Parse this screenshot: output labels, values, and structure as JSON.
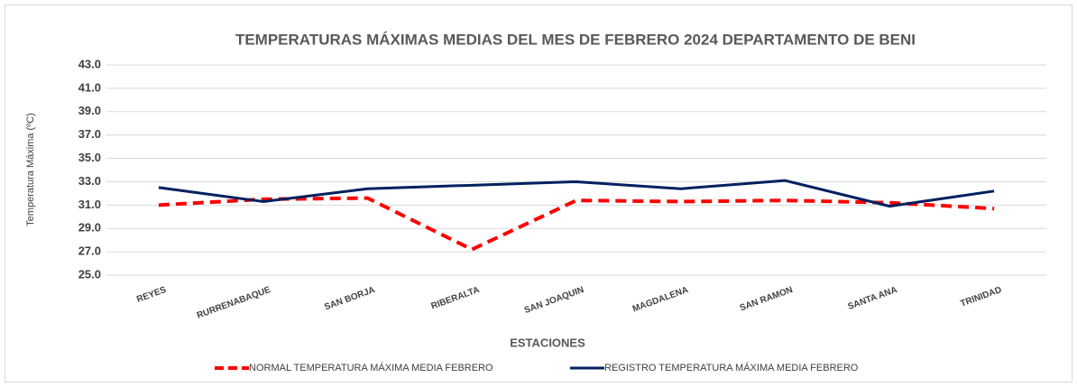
{
  "chart_data": {
    "type": "line",
    "title": "TEMPERATURAS MÁXIMAS MEDIAS DEL MES DE FEBRERO 2024 DEPARTAMENTO DE BENI",
    "x_label": "ESTACIONES",
    "y_label": "Temperatura Máxima (ºC)",
    "categories": [
      "REYES",
      "RURRENABAQUE",
      "SAN BORJA",
      "RIBERALTA",
      "SAN JOAQUIN",
      "MAGDALENA",
      "SAN RAMON",
      "SANTA ANA",
      "TRINIDAD"
    ],
    "series": [
      {
        "name": "NORMAL TEMPERATURA MÁXIMA MEDIA FEBRERO",
        "color": "#ff0000",
        "dashed": true,
        "values": [
          31.0,
          31.5,
          31.6,
          27.2,
          31.4,
          31.3,
          31.4,
          31.2,
          30.7
        ]
      },
      {
        "name": "REGISTRO TEMPERATURA MÁXIMA MEDIA FEBRERO",
        "color": "#002060",
        "dashed": false,
        "values": [
          32.5,
          31.3,
          32.4,
          32.7,
          33.0,
          32.4,
          33.1,
          30.9,
          32.2
        ]
      }
    ],
    "ylim": [
      25,
      43
    ],
    "yticks": [
      {
        "value": 25,
        "label": "25.0"
      },
      {
        "value": 27,
        "label": "27.0"
      },
      {
        "value": 29,
        "label": "29.0"
      },
      {
        "value": 31,
        "label": "31.0"
      },
      {
        "value": 33,
        "label": "33.0"
      },
      {
        "value": 35,
        "label": "35.0"
      },
      {
        "value": 37,
        "label": "37.0"
      },
      {
        "value": 39,
        "label": "39.0"
      },
      {
        "value": 41,
        "label": "41.0"
      },
      {
        "value": 43,
        "label": "43.0"
      }
    ],
    "grid": true,
    "legend": "bottom"
  }
}
